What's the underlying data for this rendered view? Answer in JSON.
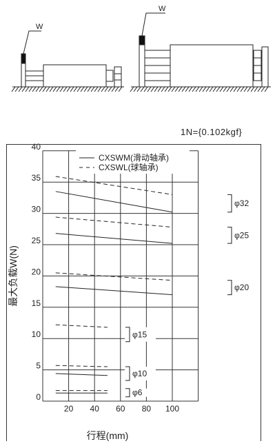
{
  "diagrams": {
    "small_label": "W",
    "large_label": "W"
  },
  "unit_note": "1N={0.102kgf}",
  "chart_data": {
    "type": "line",
    "title": "",
    "xlabel": "行程(mm)",
    "ylabel": "最大负载W(N)",
    "xlim": [
      0,
      120
    ],
    "ylim": [
      0,
      40
    ],
    "x_ticks": [
      20,
      40,
      60,
      80,
      100
    ],
    "y_ticks": [
      0,
      5,
      10,
      15,
      20,
      25,
      30,
      35,
      40
    ],
    "grid": true,
    "legend": [
      {
        "label": "CXSWM(滑动轴承)",
        "style": "solid"
      },
      {
        "label": "CXSWL(球轴承)",
        "style": "dashed"
      }
    ],
    "series": [
      {
        "group": "φ32",
        "bearing": "CXSWM",
        "style": "solid",
        "x": [
          10,
          100
        ],
        "y": [
          33.5,
          30.2
        ]
      },
      {
        "group": "φ32",
        "bearing": "CXSWL",
        "style": "dashed",
        "x": [
          10,
          100
        ],
        "y": [
          35.9,
          33.0
        ]
      },
      {
        "group": "φ25",
        "bearing": "CXSWM",
        "style": "solid",
        "x": [
          10,
          100
        ],
        "y": [
          26.8,
          25.2
        ]
      },
      {
        "group": "φ25",
        "bearing": "CXSWL",
        "style": "dashed",
        "x": [
          10,
          100
        ],
        "y": [
          29.4,
          27.8
        ]
      },
      {
        "group": "φ20",
        "bearing": "CXSWM",
        "style": "solid",
        "x": [
          10,
          100
        ],
        "y": [
          18.3,
          17.0
        ]
      },
      {
        "group": "φ20",
        "bearing": "CXSWL",
        "style": "dashed",
        "x": [
          10,
          100
        ],
        "y": [
          20.5,
          19.3
        ]
      },
      {
        "group": "φ15",
        "bearing": "CXSWL",
        "style": "dashed",
        "x": [
          10,
          50
        ],
        "y": [
          12.2,
          11.8
        ]
      },
      {
        "group": "φ10",
        "bearing": "CXSWM",
        "style": "solid",
        "x": [
          10,
          50
        ],
        "y": [
          4.4,
          4.1
        ]
      },
      {
        "group": "φ10",
        "bearing": "CXSWL",
        "style": "dashed",
        "x": [
          10,
          50
        ],
        "y": [
          5.7,
          5.5
        ]
      },
      {
        "group": "φ6",
        "bearing": "CXSWM",
        "style": "solid",
        "x": [
          10,
          50
        ],
        "y": [
          1.3,
          1.3
        ]
      },
      {
        "group": "φ6",
        "bearing": "CXSWL",
        "style": "dashed",
        "x": [
          10,
          50
        ],
        "y": [
          1.7,
          1.7
        ]
      }
    ],
    "group_labels": [
      {
        "label": "φ32",
        "y_range": [
          30.2,
          33.0
        ]
      },
      {
        "label": "φ25",
        "y_range": [
          25.2,
          27.8
        ]
      },
      {
        "label": "φ20",
        "y_range": [
          17.0,
          19.3
        ]
      },
      {
        "label": "φ15",
        "y_range": [
          9.5,
          11.8
        ]
      },
      {
        "label": "φ10",
        "y_range": [
          3.3,
          5.5
        ]
      },
      {
        "label": "φ6",
        "y_range": [
          1.0,
          1.7
        ]
      }
    ]
  }
}
